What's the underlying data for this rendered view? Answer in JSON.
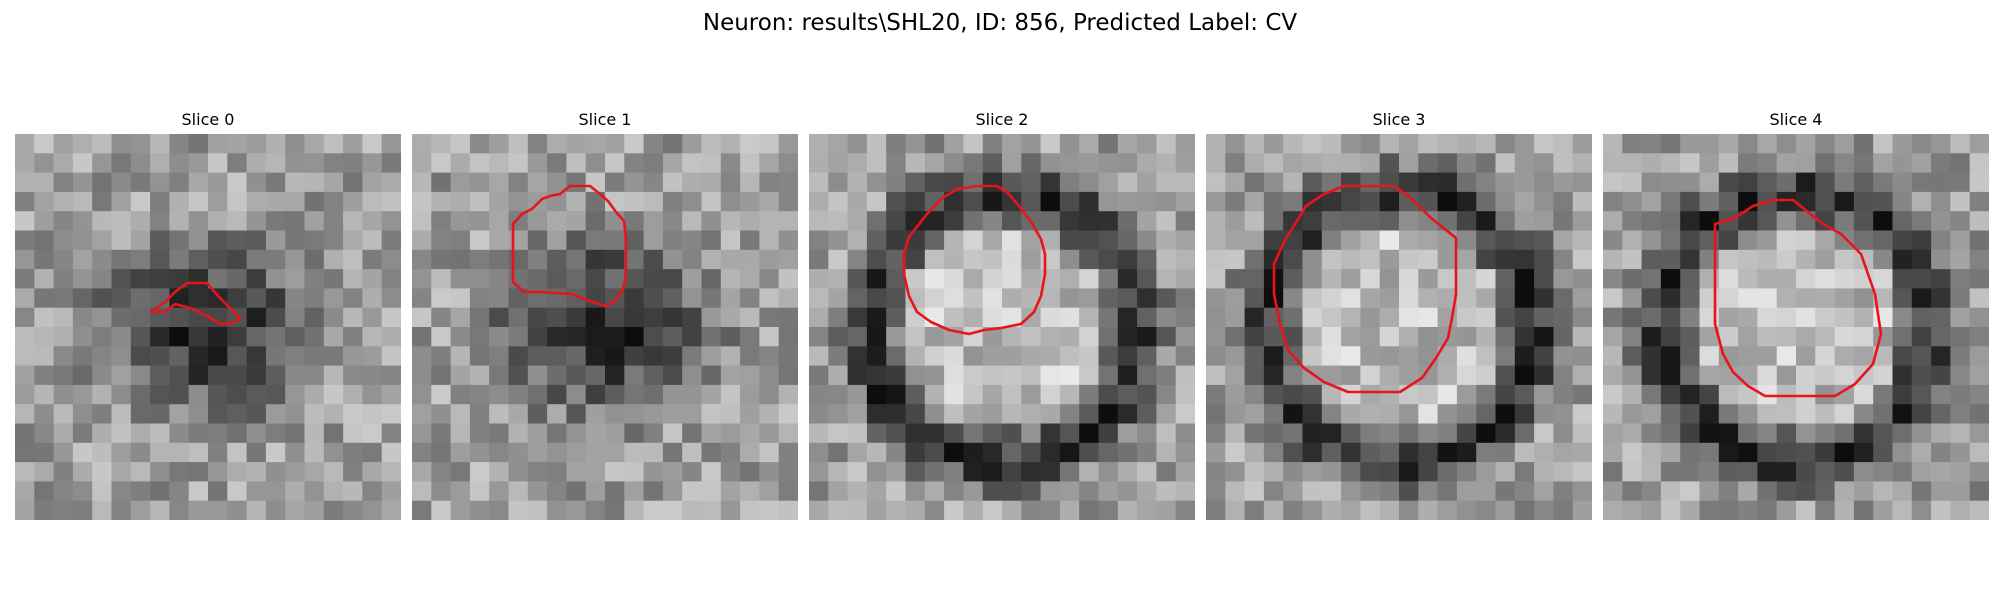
{
  "figure": {
    "title": "Neuron: results\\SHL20, ID: 856, Predicted Label: CV",
    "outline_color": "#e8141c",
    "colormap": "gray",
    "panels": [
      {
        "title": "Slice 0",
        "blob": "dark-irregular"
      },
      {
        "title": "Slice 1",
        "blob": "dark-irregular"
      },
      {
        "title": "Slice 2",
        "blob": "ring"
      },
      {
        "title": "Slice 3",
        "blob": "ring"
      },
      {
        "title": "Slice 4",
        "blob": "ring"
      }
    ]
  }
}
